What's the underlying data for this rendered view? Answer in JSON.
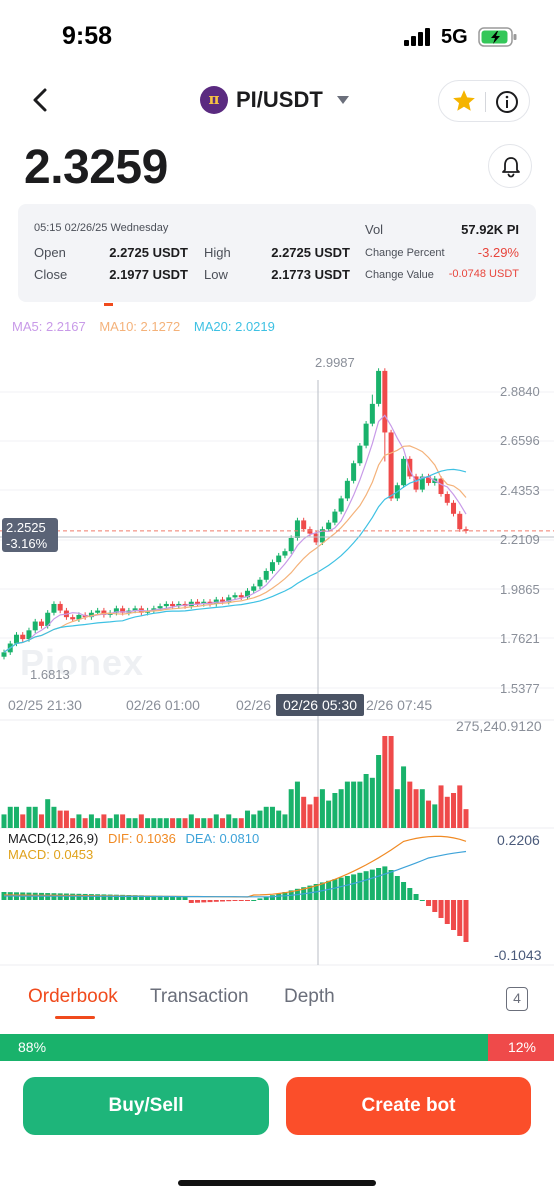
{
  "status_bar": {
    "time": "9:58",
    "network": "5G"
  },
  "header": {
    "pair": "PI/USDT",
    "back_icon": "chevron-left-icon",
    "star_icon": "star-icon",
    "info_icon": "info-icon",
    "star_color": "#f5b400"
  },
  "price": {
    "last": "2.3259"
  },
  "info_card": {
    "datetime": "05:15 02/26/25 Wednesday",
    "open_label": "Open",
    "open_value": "2.2725 USDT",
    "high_label": "High",
    "high_value": "2.2725 USDT",
    "close_label": "Close",
    "close_value": "2.1977 USDT",
    "low_label": "Low",
    "low_value": "2.1773 USDT",
    "vol_label": "Vol",
    "vol_value": "57.92K PI",
    "change_percent_label": "Change Percent",
    "change_percent_value": "-3.29%",
    "change_value_label": "Change Value",
    "change_value_value": "-0.0748 USDT"
  },
  "indicators": {
    "ma5": "MA5: 2.2167",
    "ma10": "MA10: 2.1272",
    "ma20": "MA20: 2.0219"
  },
  "chart": {
    "watermark": "Pionex",
    "y_axis_labels": [
      "2.8840",
      "2.6596",
      "2.4353",
      "2.2109",
      "1.9865",
      "1.7621",
      "1.5377"
    ],
    "max_label": "2.9987",
    "min_label": "1.6813",
    "current_price_tag": "2.2525",
    "current_change_tag": "-3.16%",
    "time_labels": [
      "02/25 21:30",
      "02/26 01:00",
      "02/26",
      "2/26 07:45"
    ],
    "crosshair_time": "02/26 05:30",
    "volume_max_label": "275,240.9120",
    "macd_top_label": "0.2206",
    "macd_bottom_label": "-0.1043",
    "macd_title": "MACD(12,26,9)",
    "dif": "DIF: 0.1036",
    "dea": "DEA: 0.0810",
    "macd_value": "MACD: 0.0453"
  },
  "tabs": {
    "orderbook": "Orderbook",
    "transaction": "Transaction",
    "depth": "Depth",
    "badge": "4"
  },
  "ratio": {
    "buy": "88%",
    "sell": "12%",
    "buy_fraction": 0.88
  },
  "actions": {
    "buy_sell": "Buy/Sell",
    "create_bot": "Create bot"
  },
  "colors": {
    "up": "#19b26b",
    "down": "#ef4a4a",
    "accent": "#f04a1c",
    "ma5": "#c89ae8",
    "ma10": "#f4b27a",
    "ma20": "#3ec1e3"
  }
}
